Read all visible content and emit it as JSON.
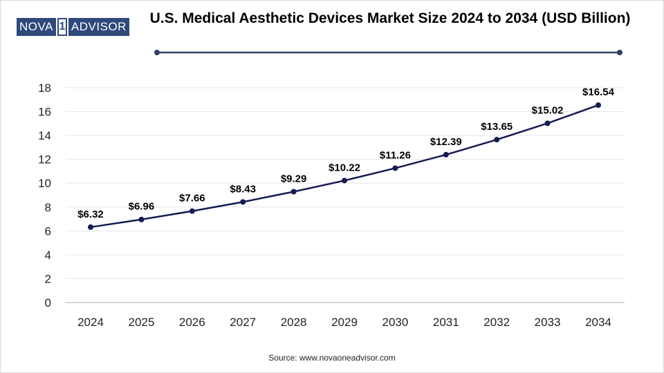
{
  "logo": {
    "left": "NOVA",
    "mark": "1",
    "right": "ADVISOR"
  },
  "chart_data": {
    "type": "line",
    "title": "U.S. Medical Aesthetic Devices Market Size 2024 to 2034 (USD Billion)",
    "categories": [
      "2024",
      "2025",
      "2026",
      "2027",
      "2028",
      "2029",
      "2030",
      "2031",
      "2032",
      "2033",
      "2034"
    ],
    "values": [
      6.32,
      6.96,
      7.66,
      8.43,
      9.29,
      10.22,
      11.26,
      12.39,
      13.65,
      15.02,
      16.54
    ],
    "data_labels": [
      "$6.32",
      "$6.96",
      "$7.66",
      "$8.43",
      "$9.29",
      "$10.22",
      "$11.26",
      "$12.39",
      "$13.65",
      "$15.02",
      "$16.54"
    ],
    "yticks": [
      0,
      2,
      4,
      6,
      8,
      10,
      12,
      14,
      16,
      18
    ],
    "ylim": [
      0,
      18
    ],
    "xlabel": "",
    "ylabel": "",
    "grid": true,
    "legend": "none",
    "line_color": "#141a52"
  },
  "footer": {
    "source": "Source: www.novaoneadvisor.com"
  }
}
